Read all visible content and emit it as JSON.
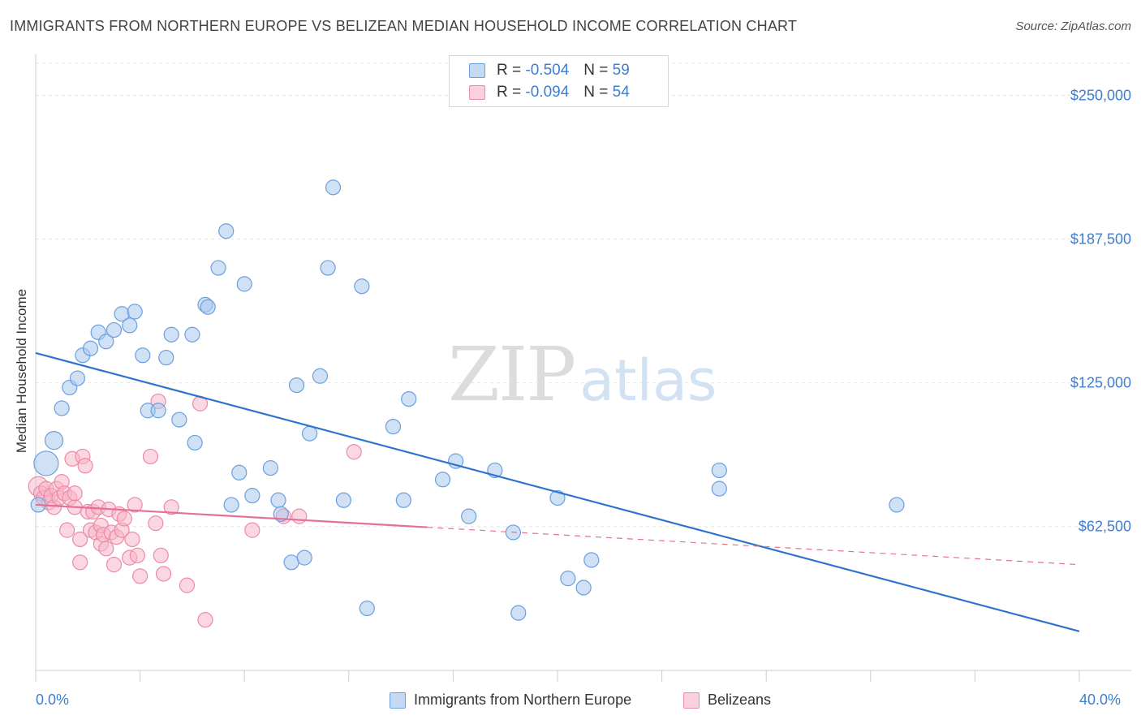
{
  "chart_data": {
    "type": "scatter",
    "title": "IMMIGRANTS FROM NORTHERN EUROPE VS BELIZEAN MEDIAN HOUSEHOLD INCOME CORRELATION CHART",
    "source": "Source: ZipAtlas.com",
    "xlabel": "",
    "ylabel": "Median Household Income",
    "xlim": [
      0,
      0.4
    ],
    "ylim": [
      0,
      265000
    ],
    "x_tick_labels": [
      "0.0%",
      "40.0%"
    ],
    "y_ticks": [
      {
        "value": 62500,
        "label": "$62,500"
      },
      {
        "value": 125000,
        "label": "$125,000"
      },
      {
        "value": 187500,
        "label": "$187,500"
      },
      {
        "value": 250000,
        "label": "$250,000"
      }
    ],
    "watermark": {
      "zip": "ZIP",
      "atlas": "atlas"
    },
    "legend": [
      {
        "r_label": "R =",
        "r_value": "-0.504",
        "n_label": "N =",
        "n_value": "59"
      },
      {
        "r_label": "R =",
        "r_value": "-0.094",
        "n_label": "N =",
        "n_value": "54"
      }
    ],
    "series": [
      {
        "name": "Immigrants from Northern Europe",
        "color": "#a9c8ee",
        "stroke": "#6a9fde",
        "line_color": "#2e74cf",
        "trend": {
          "x0": 0.0,
          "y0": 138000,
          "x1": 0.4,
          "y1": 17000,
          "dashed_from": null
        },
        "points": [
          [
            0.001,
            72000,
            9
          ],
          [
            0.004,
            90000,
            15
          ],
          [
            0.007,
            100000,
            11
          ],
          [
            0.01,
            114000,
            9
          ],
          [
            0.013,
            123000,
            9
          ],
          [
            0.016,
            127000,
            9
          ],
          [
            0.018,
            137000,
            9
          ],
          [
            0.021,
            140000,
            9
          ],
          [
            0.024,
            147000,
            9
          ],
          [
            0.027,
            143000,
            9
          ],
          [
            0.03,
            148000,
            9
          ],
          [
            0.033,
            155000,
            9
          ],
          [
            0.036,
            150000,
            9
          ],
          [
            0.038,
            156000,
            9
          ],
          [
            0.041,
            137000,
            9
          ],
          [
            0.043,
            113000,
            9
          ],
          [
            0.047,
            113000,
            9
          ],
          [
            0.05,
            136000,
            9
          ],
          [
            0.052,
            146000,
            9
          ],
          [
            0.055,
            109000,
            9
          ],
          [
            0.06,
            146000,
            9
          ],
          [
            0.061,
            99000,
            9
          ],
          [
            0.065,
            159000,
            9
          ],
          [
            0.066,
            158000,
            9
          ],
          [
            0.07,
            175000,
            9
          ],
          [
            0.073,
            191000,
            9
          ],
          [
            0.075,
            72000,
            9
          ],
          [
            0.078,
            86000,
            9
          ],
          [
            0.08,
            168000,
            9
          ],
          [
            0.083,
            76000,
            9
          ],
          [
            0.09,
            88000,
            9
          ],
          [
            0.093,
            74000,
            9
          ],
          [
            0.094,
            68000,
            9
          ],
          [
            0.098,
            47000,
            9
          ],
          [
            0.1,
            124000,
            9
          ],
          [
            0.103,
            49000,
            9
          ],
          [
            0.105,
            103000,
            9
          ],
          [
            0.109,
            128000,
            9
          ],
          [
            0.112,
            175000,
            9
          ],
          [
            0.114,
            210000,
            9
          ],
          [
            0.118,
            74000,
            9
          ],
          [
            0.125,
            167000,
            9
          ],
          [
            0.127,
            27000,
            9
          ],
          [
            0.137,
            106000,
            9
          ],
          [
            0.141,
            74000,
            9
          ],
          [
            0.143,
            118000,
            9
          ],
          [
            0.156,
            83000,
            9
          ],
          [
            0.161,
            91000,
            9
          ],
          [
            0.166,
            67000,
            9
          ],
          [
            0.176,
            87000,
            9
          ],
          [
            0.183,
            60000,
            9
          ],
          [
            0.185,
            25000,
            9
          ],
          [
            0.2,
            75000,
            9
          ],
          [
            0.204,
            40000,
            9
          ],
          [
            0.21,
            36000,
            9
          ],
          [
            0.213,
            48000,
            9
          ],
          [
            0.262,
            87000,
            9
          ],
          [
            0.262,
            79000,
            9
          ],
          [
            0.33,
            72000,
            9
          ]
        ]
      },
      {
        "name": "Belizeans",
        "color": "#f7b6c9",
        "stroke": "#ec8aa9",
        "line_color": "#e46f98",
        "trend": {
          "x0": 0.0,
          "y0": 72000,
          "x1": 0.4,
          "y1": 46000,
          "dashed_from": 0.15
        },
        "points": [
          [
            0.001,
            80000,
            12
          ],
          [
            0.002,
            77000,
            9
          ],
          [
            0.003,
            75000,
            9
          ],
          [
            0.004,
            79000,
            9
          ],
          [
            0.005,
            73000,
            9
          ],
          [
            0.006,
            76000,
            9
          ],
          [
            0.007,
            71000,
            9
          ],
          [
            0.008,
            79000,
            9
          ],
          [
            0.009,
            75000,
            9
          ],
          [
            0.01,
            82000,
            9
          ],
          [
            0.011,
            77000,
            9
          ],
          [
            0.012,
            61000,
            9
          ],
          [
            0.013,
            75000,
            9
          ],
          [
            0.014,
            92000,
            9
          ],
          [
            0.015,
            71000,
            9
          ],
          [
            0.015,
            77000,
            9
          ],
          [
            0.017,
            57000,
            9
          ],
          [
            0.017,
            47000,
            9
          ],
          [
            0.018,
            93000,
            9
          ],
          [
            0.019,
            89000,
            9
          ],
          [
            0.02,
            69000,
            9
          ],
          [
            0.021,
            61000,
            9
          ],
          [
            0.022,
            69000,
            9
          ],
          [
            0.023,
            60000,
            9
          ],
          [
            0.024,
            71000,
            9
          ],
          [
            0.025,
            63000,
            9
          ],
          [
            0.025,
            55000,
            9
          ],
          [
            0.026,
            59000,
            9
          ],
          [
            0.027,
            53000,
            9
          ],
          [
            0.028,
            70000,
            9
          ],
          [
            0.029,
            60000,
            9
          ],
          [
            0.03,
            46000,
            9
          ],
          [
            0.031,
            58000,
            9
          ],
          [
            0.032,
            68000,
            9
          ],
          [
            0.033,
            61000,
            9
          ],
          [
            0.034,
            66000,
            9
          ],
          [
            0.036,
            49000,
            9
          ],
          [
            0.037,
            57000,
            9
          ],
          [
            0.038,
            72000,
            9
          ],
          [
            0.039,
            50000,
            9
          ],
          [
            0.04,
            41000,
            9
          ],
          [
            0.044,
            93000,
            9
          ],
          [
            0.046,
            64000,
            9
          ],
          [
            0.047,
            117000,
            9
          ],
          [
            0.048,
            50000,
            9
          ],
          [
            0.049,
            42000,
            9
          ],
          [
            0.052,
            71000,
            9
          ],
          [
            0.058,
            37000,
            9
          ],
          [
            0.063,
            116000,
            9
          ],
          [
            0.065,
            22000,
            9
          ],
          [
            0.083,
            61000,
            9
          ],
          [
            0.095,
            67000,
            9
          ],
          [
            0.101,
            67000,
            9
          ],
          [
            0.122,
            95000,
            9
          ]
        ]
      }
    ]
  }
}
